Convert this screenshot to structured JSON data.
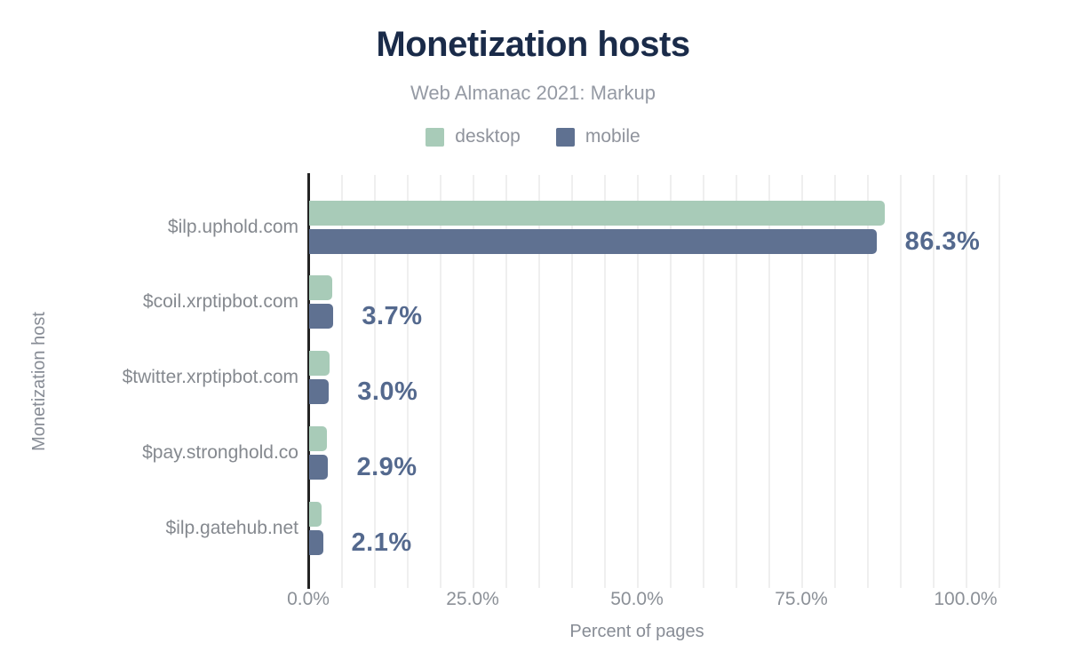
{
  "chart_data": {
    "type": "bar",
    "orientation": "horizontal",
    "title": "Monetization hosts",
    "subtitle": "Web Almanac 2021: Markup",
    "xlabel": "Percent of pages",
    "ylabel": "Monetization host",
    "xlim": [
      0,
      105
    ],
    "grid": {
      "vertical": true,
      "interval_pct": 5
    },
    "legend_position": "top",
    "categories": [
      "$ilp.uphold.com",
      "$coil.xrptipbot.com",
      "$twitter.xrptipbot.com",
      "$pay.stronghold.co",
      "$ilp.gatehub.net"
    ],
    "series": [
      {
        "name": "desktop",
        "color": "#a8cbb8",
        "values": [
          87.6,
          3.5,
          3.1,
          2.7,
          1.9
        ]
      },
      {
        "name": "mobile",
        "color": "#5f7191",
        "values": [
          86.3,
          3.7,
          3.0,
          2.9,
          2.1
        ]
      }
    ],
    "value_labels": [
      "86.3%",
      "3.7%",
      "3.0%",
      "2.9%",
      "2.1%"
    ],
    "x_ticks": [
      {
        "value": 0,
        "label": "0.0%"
      },
      {
        "value": 25,
        "label": "25.0%"
      },
      {
        "value": 50,
        "label": "50.0%"
      },
      {
        "value": 75,
        "label": "75.0%"
      },
      {
        "value": 100,
        "label": "100.0%"
      }
    ]
  },
  "legend": [
    {
      "label": "desktop",
      "color": "#a8cbb8"
    },
    {
      "label": "mobile",
      "color": "#5f7191"
    }
  ],
  "colors": {
    "title": "#1a2b49",
    "desktop_bar": "#a8cbb8",
    "mobile_bar": "#5f7191",
    "value_label": "#54698e",
    "axis_line": "#232323",
    "gridline": "#efefef",
    "text_gray": "#878c95"
  }
}
